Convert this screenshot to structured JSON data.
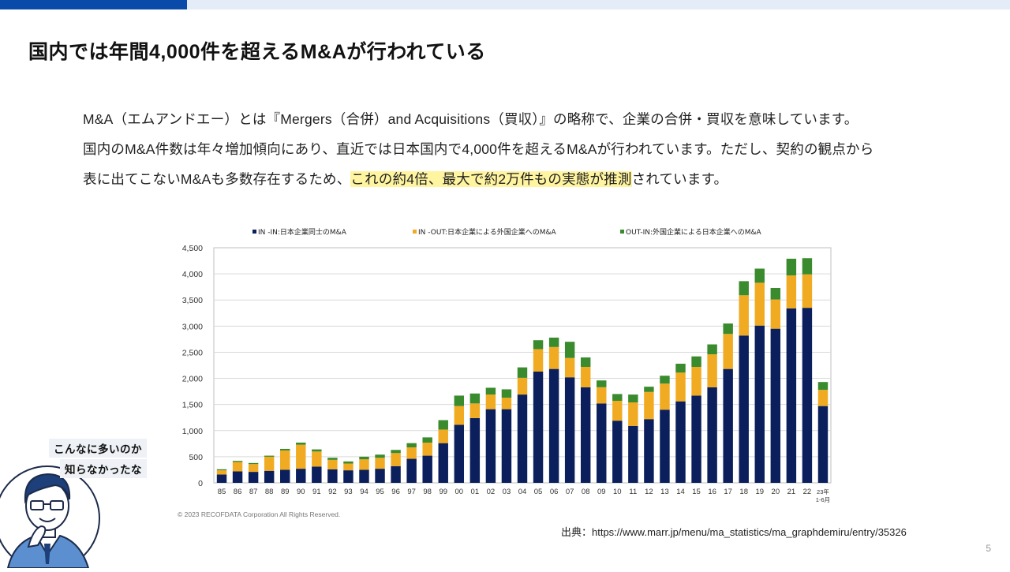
{
  "slide": {
    "title": "国内では年間4,000件を超えるM&Aが行われている",
    "paragraph": {
      "line1": "M&A（エムアンドエー）とは『Mergers（合併）and Acquisitions（買収）』の略称で、企業の合併・買収を意味しています。",
      "line2": "国内のM&A件数は年々増加傾向にあり、直近では日本国内で4,000件を超えるM&Aが行われています。ただし、契約の観点から",
      "line3_before": "表に出てこないM&Aも多数存在するため、",
      "line3_highlight": "これの約4倍、最大で約2万件もの実態が推測",
      "line3_after": "されています。"
    },
    "source": "出典：https://www.marr.jp/menu/ma_statistics/ma_graphdemiru/entry/35326",
    "page_number": "5",
    "speech": {
      "line1": "こんなに多いのか",
      "line2": "知らなかったな"
    },
    "colors": {
      "accent_dark": "#0a4aa8",
      "accent_light": "#e3ecf7",
      "highlight": "#fff4a0"
    }
  },
  "chart_data": {
    "type": "bar",
    "stacked": true,
    "categories": [
      "85",
      "86",
      "87",
      "88",
      "89",
      "90",
      "91",
      "92",
      "93",
      "94",
      "95",
      "96",
      "97",
      "98",
      "99",
      "00",
      "01",
      "02",
      "03",
      "04",
      "05",
      "06",
      "07",
      "08",
      "09",
      "10",
      "11",
      "12",
      "13",
      "14",
      "15",
      "16",
      "17",
      "18",
      "19",
      "20",
      "21",
      "22",
      "23年\n1-6月"
    ],
    "series": [
      {
        "name": "IN -IN:日本企業同士のM&A",
        "color": "#0b1f5c",
        "values": [
          160,
          220,
          210,
          230,
          250,
          270,
          310,
          260,
          240,
          250,
          270,
          320,
          460,
          520,
          760,
          1110,
          1240,
          1410,
          1410,
          1690,
          2130,
          2180,
          2020,
          1830,
          1520,
          1190,
          1090,
          1220,
          1400,
          1560,
          1670,
          1830,
          2180,
          2820,
          3010,
          2950,
          3340,
          3350,
          1470
        ]
      },
      {
        "name": "IN -OUT:日本企業による外国企業へのM&A",
        "color": "#f0ab22",
        "values": [
          80,
          180,
          150,
          270,
          370,
          460,
          290,
          180,
          130,
          200,
          210,
          250,
          220,
          250,
          260,
          360,
          280,
          280,
          220,
          320,
          430,
          420,
          370,
          390,
          310,
          380,
          450,
          520,
          500,
          550,
          550,
          630,
          670,
          770,
          820,
          560,
          630,
          640,
          310
        ]
      },
      {
        "name": "OUT-IN:外国企業による日本企業へのM&A",
        "color": "#3a8a2e",
        "values": [
          20,
          20,
          20,
          20,
          30,
          40,
          40,
          40,
          40,
          50,
          60,
          60,
          80,
          100,
          180,
          200,
          190,
          130,
          160,
          200,
          170,
          180,
          310,
          180,
          130,
          130,
          150,
          100,
          150,
          170,
          200,
          190,
          200,
          270,
          270,
          220,
          320,
          310,
          150
        ]
      }
    ],
    "y_ticks": [
      "0",
      "500",
      "1,000",
      "1,500",
      "2,000",
      "2,500",
      "3,000",
      "3,500",
      "4,000",
      "4,500"
    ],
    "ylim": [
      0,
      4500
    ],
    "grid": "horizontal",
    "legend_position": "top",
    "copyright": "© 2023 RECOFDATA Corporation All Rights Reserved."
  }
}
